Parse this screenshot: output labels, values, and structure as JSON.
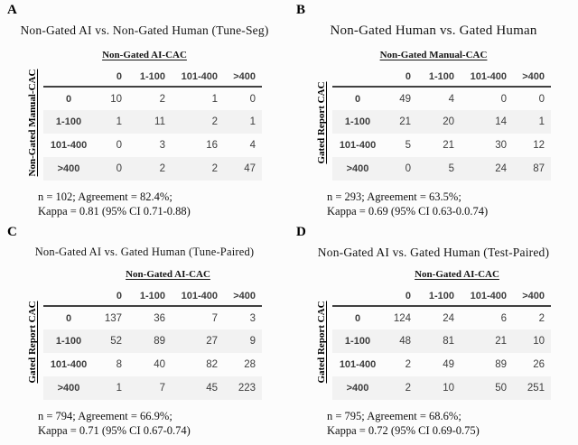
{
  "figure": {
    "colors": {
      "background": "#fcfcfc",
      "table_text": "#3d3d3d",
      "row_shade": "#f2f2f2",
      "header_rule": "#404040",
      "title_text": "#141414"
    }
  },
  "panels": [
    {
      "letter": "A",
      "title": "Non-Gated AI vs. Non-Gated Human (Tune-Seg)",
      "col_axis_label": "Non-Gated AI-CAC",
      "row_axis_label": "Non-Gated Manual-CAC",
      "col_headers": [
        "0",
        "1-100",
        "101-400",
        ">400"
      ],
      "rows": [
        {
          "label": "0",
          "values": [
            "10",
            "2",
            "1",
            "0"
          ]
        },
        {
          "label": "1-100",
          "values": [
            "1",
            "11",
            "2",
            "1"
          ]
        },
        {
          "label": "101-400",
          "values": [
            "0",
            "3",
            "16",
            "4"
          ]
        },
        {
          "label": ">400",
          "values": [
            "0",
            "2",
            "2",
            "47"
          ]
        }
      ],
      "stats": [
        "n = 102; Agreement = 82.4%;",
        "Kappa = 0.81 (95% CI 0.71-0.88)"
      ]
    },
    {
      "letter": "B",
      "title": "Non-Gated Human vs. Gated Human",
      "col_axis_label": "Non-Gated Manual-CAC",
      "row_axis_label": "Gated Report CAC",
      "col_headers": [
        "0",
        "1-100",
        "101-400",
        ">400"
      ],
      "rows": [
        {
          "label": "0",
          "values": [
            "49",
            "4",
            "0",
            "0"
          ]
        },
        {
          "label": "1-100",
          "values": [
            "21",
            "20",
            "14",
            "1"
          ]
        },
        {
          "label": "101-400",
          "values": [
            "5",
            "21",
            "30",
            "12"
          ]
        },
        {
          "label": ">400",
          "values": [
            "0",
            "5",
            "24",
            "87"
          ]
        }
      ],
      "stats": [
        "n = 293; Agreement = 63.5%;",
        "Kappa = 0.69 (95% CI 0.63-0.0.74)"
      ]
    },
    {
      "letter": "C",
      "title": "Non-Gated AI vs. Gated Human (Tune-Paired)",
      "col_axis_label": "Non-Gated AI-CAC",
      "row_axis_label": "Gated Report CAC",
      "col_headers": [
        "0",
        "1-100",
        "101-400",
        ">400"
      ],
      "rows": [
        {
          "label": "0",
          "values": [
            "137",
            "36",
            "7",
            "3"
          ]
        },
        {
          "label": "1-100",
          "values": [
            "52",
            "89",
            "27",
            "9"
          ]
        },
        {
          "label": "101-400",
          "values": [
            "8",
            "40",
            "82",
            "28"
          ]
        },
        {
          "label": ">400",
          "values": [
            "1",
            "7",
            "45",
            "223"
          ]
        }
      ],
      "stats": [
        "n = 794; Agreement = 66.9%;",
        "Kappa = 0.71 (95% CI 0.67-0.74)"
      ]
    },
    {
      "letter": "D",
      "title": "Non-Gated AI vs. Gated Human (Test-Paired)",
      "col_axis_label": "Non-Gated AI-CAC",
      "row_axis_label": "Gated Report CAC",
      "col_headers": [
        "0",
        "1-100",
        "101-400",
        ">400"
      ],
      "rows": [
        {
          "label": "0",
          "values": [
            "124",
            "24",
            "6",
            "2"
          ]
        },
        {
          "label": "1-100",
          "values": [
            "48",
            "81",
            "21",
            "10"
          ]
        },
        {
          "label": "101-400",
          "values": [
            "2",
            "49",
            "89",
            "26"
          ]
        },
        {
          "label": ">400",
          "values": [
            "2",
            "10",
            "50",
            "251"
          ]
        }
      ],
      "stats": [
        "n = 795; Agreement = 68.6%;",
        "Kappa = 0.72 (95% CI 0.69-0.75)"
      ]
    }
  ]
}
